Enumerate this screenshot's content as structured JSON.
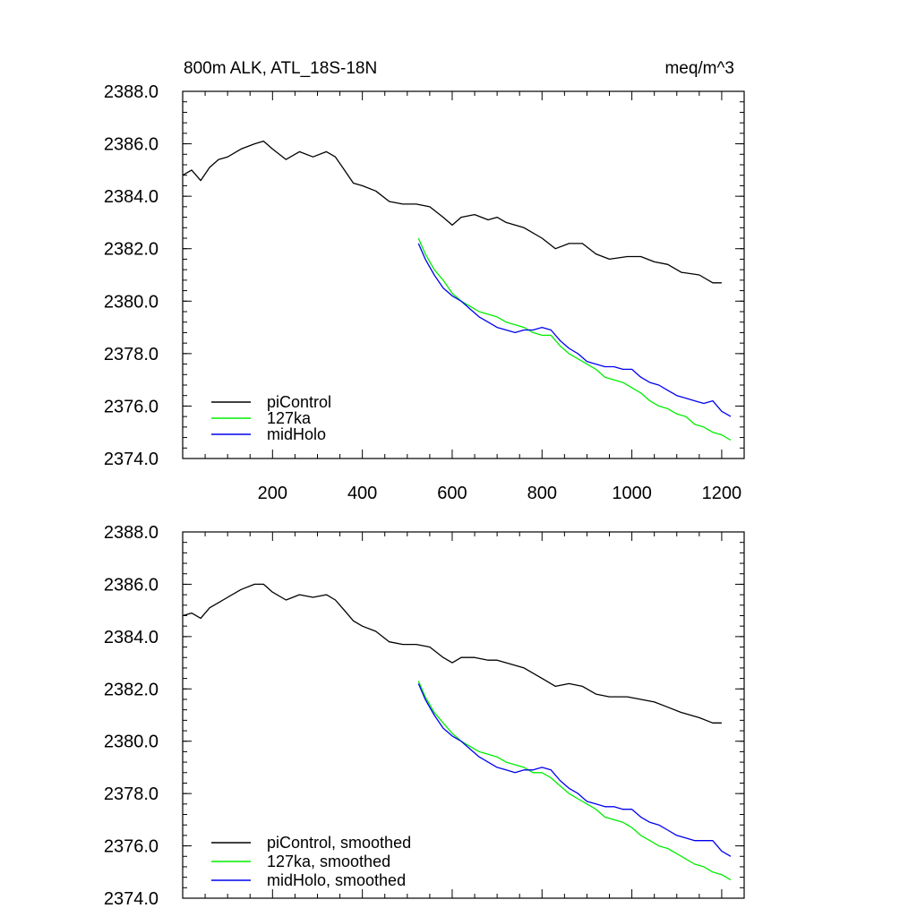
{
  "colors": {
    "piControl": "#000000",
    "127ka": "#00ee00",
    "midHolo": "#0000ee"
  },
  "chart_data": [
    {
      "type": "line",
      "panel": "top",
      "title_left": "800m ALK, ATL_18S-18N",
      "title_right": "meq/m^3",
      "xlim": [
        0,
        1250
      ],
      "ylim": [
        2374,
        2388
      ],
      "x_ticks": [
        200,
        400,
        600,
        800,
        1000,
        1200
      ],
      "x_tick_labels": [
        "200",
        "400",
        "600",
        "800",
        "1000",
        "1200"
      ],
      "y_ticks": [
        2374,
        2376,
        2378,
        2380,
        2382,
        2384,
        2386,
        2388
      ],
      "y_tick_labels": [
        "2374.0",
        "2376.0",
        "2378.0",
        "2380.0",
        "2382.0",
        "2384.0",
        "2386.0",
        "2388.0"
      ],
      "legend_position": "bottom-left",
      "series": [
        {
          "name": "piControl",
          "color_key": "piControl",
          "x": [
            0,
            20,
            40,
            60,
            80,
            100,
            130,
            160,
            180,
            200,
            230,
            260,
            290,
            320,
            340,
            360,
            380,
            400,
            430,
            460,
            490,
            520,
            550,
            580,
            600,
            620,
            650,
            680,
            700,
            720,
            760,
            800,
            830,
            860,
            890,
            920,
            950,
            990,
            1020,
            1050,
            1080,
            1110,
            1150,
            1180,
            1200
          ],
          "values": [
            2384.8,
            2385.0,
            2384.6,
            2385.1,
            2385.4,
            2385.5,
            2385.8,
            2386.0,
            2386.1,
            2385.8,
            2385.4,
            2385.7,
            2385.5,
            2385.7,
            2385.5,
            2385.0,
            2384.5,
            2384.4,
            2384.2,
            2383.8,
            2383.7,
            2383.7,
            2383.6,
            2383.2,
            2382.9,
            2383.2,
            2383.3,
            2383.1,
            2383.2,
            2383.0,
            2382.8,
            2382.4,
            2382.0,
            2382.2,
            2382.2,
            2381.8,
            2381.6,
            2381.7,
            2381.7,
            2381.5,
            2381.4,
            2381.1,
            2381.0,
            2380.7,
            2380.7
          ]
        },
        {
          "name": "127ka",
          "color_key": "127ka",
          "x": [
            525,
            540,
            560,
            580,
            600,
            620,
            640,
            660,
            680,
            700,
            720,
            740,
            760,
            780,
            800,
            820,
            840,
            860,
            880,
            900,
            920,
            940,
            960,
            980,
            1000,
            1020,
            1040,
            1060,
            1080,
            1100,
            1120,
            1140,
            1160,
            1180,
            1200,
            1220
          ],
          "values": [
            2382.4,
            2381.8,
            2381.2,
            2380.8,
            2380.3,
            2380.0,
            2379.8,
            2379.6,
            2379.5,
            2379.4,
            2379.2,
            2379.1,
            2379.0,
            2378.8,
            2378.7,
            2378.7,
            2378.3,
            2378.0,
            2377.8,
            2377.6,
            2377.4,
            2377.1,
            2377.0,
            2376.9,
            2376.7,
            2376.5,
            2376.2,
            2376.0,
            2375.9,
            2375.7,
            2375.6,
            2375.3,
            2375.2,
            2375.0,
            2374.9,
            2374.7
          ]
        },
        {
          "name": "midHolo",
          "color_key": "midHolo",
          "x": [
            525,
            540,
            560,
            580,
            600,
            620,
            640,
            660,
            680,
            700,
            720,
            740,
            760,
            780,
            800,
            820,
            840,
            860,
            880,
            900,
            920,
            940,
            960,
            980,
            1000,
            1020,
            1040,
            1060,
            1080,
            1100,
            1120,
            1140,
            1160,
            1180,
            1200,
            1220
          ],
          "values": [
            2382.2,
            2381.6,
            2381.0,
            2380.5,
            2380.2,
            2380.0,
            2379.7,
            2379.4,
            2379.2,
            2379.0,
            2378.9,
            2378.8,
            2378.9,
            2378.9,
            2379.0,
            2378.9,
            2378.5,
            2378.2,
            2378.0,
            2377.7,
            2377.6,
            2377.5,
            2377.5,
            2377.4,
            2377.4,
            2377.1,
            2376.9,
            2376.8,
            2376.6,
            2376.4,
            2376.3,
            2376.2,
            2376.1,
            2376.2,
            2375.8,
            2375.6
          ]
        }
      ],
      "legend": [
        "piControl",
        "127ka",
        "midHolo"
      ]
    },
    {
      "type": "line",
      "panel": "bottom",
      "xlim": [
        0,
        1250
      ],
      "ylim": [
        2374,
        2388
      ],
      "x_ticks": [
        200,
        400,
        600,
        800,
        1000,
        1200
      ],
      "y_ticks": [
        2374,
        2376,
        2378,
        2380,
        2382,
        2384,
        2386,
        2388
      ],
      "y_tick_labels": [
        "2374.0",
        "2376.0",
        "2378.0",
        "2380.0",
        "2382.0",
        "2384.0",
        "2386.0",
        "2388.0"
      ],
      "legend_position": "bottom-left",
      "series": [
        {
          "name": "piControl, smoothed",
          "color_key": "piControl",
          "x": [
            0,
            20,
            40,
            60,
            80,
            100,
            130,
            160,
            180,
            200,
            230,
            260,
            290,
            320,
            340,
            360,
            380,
            400,
            430,
            460,
            490,
            520,
            550,
            580,
            600,
            620,
            650,
            680,
            700,
            720,
            760,
            800,
            830,
            860,
            890,
            920,
            950,
            990,
            1020,
            1050,
            1080,
            1110,
            1150,
            1180,
            1200
          ],
          "values": [
            2384.8,
            2384.9,
            2384.7,
            2385.1,
            2385.3,
            2385.5,
            2385.8,
            2386.0,
            2386.0,
            2385.7,
            2385.4,
            2385.6,
            2385.5,
            2385.6,
            2385.4,
            2385.0,
            2384.6,
            2384.4,
            2384.2,
            2383.8,
            2383.7,
            2383.7,
            2383.6,
            2383.2,
            2383.0,
            2383.2,
            2383.2,
            2383.1,
            2383.1,
            2383.0,
            2382.8,
            2382.4,
            2382.1,
            2382.2,
            2382.1,
            2381.8,
            2381.7,
            2381.7,
            2381.6,
            2381.5,
            2381.3,
            2381.1,
            2380.9,
            2380.7,
            2380.7
          ]
        },
        {
          "name": "127ka, smoothed",
          "color_key": "127ka",
          "x": [
            525,
            540,
            560,
            580,
            600,
            620,
            640,
            660,
            680,
            700,
            720,
            740,
            760,
            780,
            800,
            820,
            840,
            860,
            880,
            900,
            920,
            940,
            960,
            980,
            1000,
            1020,
            1040,
            1060,
            1080,
            1100,
            1120,
            1140,
            1160,
            1180,
            1200,
            1220
          ],
          "values": [
            2382.3,
            2381.7,
            2381.1,
            2380.7,
            2380.3,
            2380.0,
            2379.8,
            2379.6,
            2379.5,
            2379.4,
            2379.2,
            2379.1,
            2379.0,
            2378.8,
            2378.8,
            2378.6,
            2378.3,
            2378.0,
            2377.8,
            2377.6,
            2377.4,
            2377.1,
            2377.0,
            2376.9,
            2376.7,
            2376.4,
            2376.2,
            2376.0,
            2375.9,
            2375.7,
            2375.5,
            2375.3,
            2375.2,
            2375.0,
            2374.9,
            2374.7
          ]
        },
        {
          "name": "midHolo, smoothed",
          "color_key": "midHolo",
          "x": [
            525,
            540,
            560,
            580,
            600,
            620,
            640,
            660,
            680,
            700,
            720,
            740,
            760,
            780,
            800,
            820,
            840,
            860,
            880,
            900,
            920,
            940,
            960,
            980,
            1000,
            1020,
            1040,
            1060,
            1080,
            1100,
            1120,
            1140,
            1160,
            1180,
            1200,
            1220
          ],
          "values": [
            2382.2,
            2381.6,
            2381.0,
            2380.5,
            2380.2,
            2380.0,
            2379.7,
            2379.4,
            2379.2,
            2379.0,
            2378.9,
            2378.8,
            2378.9,
            2378.9,
            2379.0,
            2378.9,
            2378.5,
            2378.2,
            2378.0,
            2377.7,
            2377.6,
            2377.5,
            2377.5,
            2377.4,
            2377.4,
            2377.1,
            2376.9,
            2376.8,
            2376.6,
            2376.4,
            2376.3,
            2376.2,
            2376.2,
            2376.2,
            2375.8,
            2375.6
          ]
        }
      ],
      "legend": [
        "piControl, smoothed",
        "127ka, smoothed",
        "midHolo, smoothed"
      ]
    }
  ]
}
